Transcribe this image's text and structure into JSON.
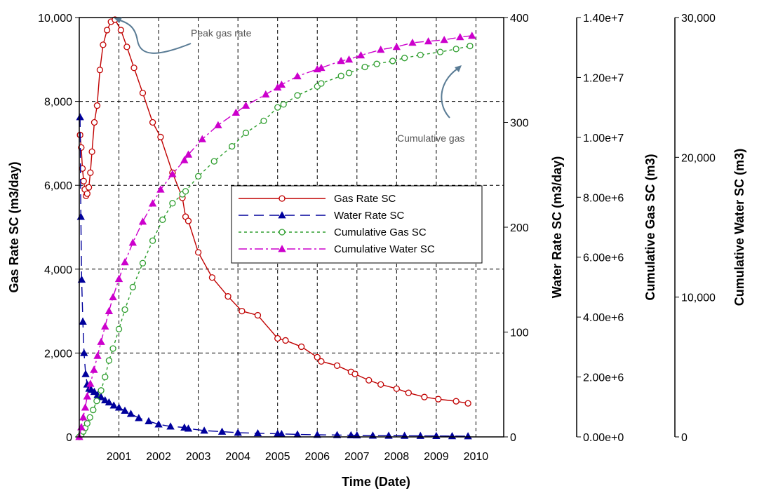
{
  "chart_data": {
    "type": "line",
    "title": "",
    "xlabel": "Time (Date)",
    "x_ticks": [
      "2001",
      "2002",
      "2003",
      "2004",
      "2005",
      "2006",
      "2007",
      "2008",
      "2009",
      "2010"
    ],
    "x_range": [
      2000.0,
      2010.7
    ],
    "axes": [
      {
        "id": "gas_rate",
        "label": "Gas Rate SC (m3/day)",
        "range": [
          0,
          10000
        ],
        "ticks": [
          0,
          2000,
          4000,
          6000,
          8000,
          10000
        ],
        "tick_labels": [
          "0",
          "2,000",
          "4,000",
          "6,000",
          "8,000",
          "10,000"
        ]
      },
      {
        "id": "water_rate",
        "label": "Water Rate SC (m3/day)",
        "range": [
          0,
          400
        ],
        "ticks": [
          0,
          100,
          200,
          300,
          400
        ],
        "tick_labels": [
          "0",
          "100",
          "200",
          "300",
          "400"
        ]
      },
      {
        "id": "cum_gas",
        "label": "Cumulative Gas SC (m3)",
        "range": [
          0,
          14000000
        ],
        "ticks": [
          0,
          2000000,
          4000000,
          6000000,
          8000000,
          10000000,
          12000000,
          14000000
        ],
        "tick_labels": [
          "0.00e+0",
          "2.00e+6",
          "4.00e+6",
          "6.00e+6",
          "8.00e+6",
          "1.00e+7",
          "1.20e+7",
          "1.40e+7"
        ]
      },
      {
        "id": "cum_water",
        "label": "Cumulative Water SC (m3)",
        "range": [
          0,
          30000
        ],
        "ticks": [
          0,
          10000,
          20000,
          30000
        ],
        "tick_labels": [
          "0",
          "10,000",
          "20,000",
          "30,000"
        ]
      }
    ],
    "series": [
      {
        "name": "Gas Rate SC",
        "axis": "gas_rate",
        "color": "#c00000",
        "dash": "",
        "marker": "circle",
        "x": [
          2000.02,
          2000.05,
          2000.08,
          2000.11,
          2000.14,
          2000.17,
          2000.2,
          2000.24,
          2000.28,
          2000.32,
          2000.38,
          2000.45,
          2000.52,
          2000.6,
          2000.7,
          2000.8,
          2000.9,
          2001.05,
          2001.2,
          2001.38,
          2001.6,
          2001.85,
          2002.05,
          2002.35,
          2002.6,
          2002.68,
          2002.75,
          2003.0,
          2003.35,
          2003.75,
          2004.1,
          2004.5,
          2005.0,
          2005.2,
          2005.6,
          2006.0,
          2006.1,
          2006.5,
          2006.85,
          2006.95,
          2007.3,
          2007.6,
          2008.0,
          2008.3,
          2008.7,
          2009.05,
          2009.5,
          2009.8
        ],
        "values": [
          7200,
          6900,
          6400,
          6100,
          5900,
          5750,
          5800,
          5950,
          6300,
          6800,
          7500,
          7900,
          8750,
          9350,
          9700,
          9900,
          9950,
          9700,
          9300,
          8800,
          8200,
          7500,
          7150,
          6300,
          5700,
          5250,
          5150,
          4400,
          3800,
          3350,
          3000,
          2900,
          2350,
          2300,
          2150,
          1900,
          1800,
          1700,
          1550,
          1500,
          1350,
          1250,
          1150,
          1050,
          950,
          900,
          850,
          800
        ]
      },
      {
        "name": "Water Rate SC",
        "axis": "water_rate",
        "color": "#00009c",
        "dash": "14,8",
        "marker": "triangle",
        "x": [
          2000.02,
          2000.04,
          2000.06,
          2000.09,
          2000.12,
          2000.16,
          2000.2,
          2000.25,
          2000.3,
          2000.38,
          2000.46,
          2000.55,
          2000.65,
          2000.75,
          2000.87,
          2001.0,
          2001.15,
          2001.3,
          2001.5,
          2001.75,
          2002.0,
          2002.3,
          2002.65,
          2002.75,
          2003.15,
          2003.6,
          2004.0,
          2004.5,
          2005.0,
          2005.1,
          2005.5,
          2006.0,
          2006.5,
          2006.85,
          2007.0,
          2007.4,
          2007.8,
          2008.2,
          2008.6,
          2009.0,
          2009.4,
          2009.8
        ],
        "values": [
          305,
          210,
          150,
          110,
          80,
          60,
          50,
          46,
          45,
          43,
          40,
          38,
          35,
          33,
          30,
          28,
          25,
          22,
          18,
          15,
          12,
          10,
          9,
          8,
          6,
          5,
          4,
          3.5,
          3,
          2.8,
          2.4,
          2,
          1.8,
          1.6,
          1.5,
          1.3,
          1.2,
          1.1,
          1.0,
          0.9,
          0.8,
          0.7
        ]
      },
      {
        "name": "Cumulative Gas SC",
        "axis": "cum_gas",
        "color": "#2e9e2e",
        "dash": "4,4",
        "marker": "circle",
        "x": [
          2000.0,
          2000.05,
          2000.1,
          2000.15,
          2000.2,
          2000.27,
          2000.35,
          2000.44,
          2000.55,
          2000.65,
          2000.75,
          2000.85,
          2001.0,
          2001.15,
          2001.35,
          2001.6,
          2001.85,
          2002.1,
          2002.35,
          2002.6,
          2002.68,
          2003.0,
          2003.4,
          2003.85,
          2004.2,
          2004.65,
          2005.0,
          2005.15,
          2005.5,
          2006.0,
          2006.1,
          2006.6,
          2006.8,
          2007.2,
          2007.5,
          2007.9,
          2008.2,
          2008.6,
          2009.1,
          2009.5,
          2009.85
        ],
        "values": [
          0,
          80000,
          180000,
          300000,
          450000,
          650000,
          900000,
          1200000,
          1550000,
          2000000,
          2550000,
          2950000,
          3600000,
          4250000,
          5000000,
          5800000,
          6550000,
          7250000,
          7800000,
          8100000,
          8200000,
          8700000,
          9200000,
          9700000,
          10150000,
          10550000,
          11000000,
          11100000,
          11400000,
          11700000,
          11800000,
          12050000,
          12150000,
          12350000,
          12450000,
          12550000,
          12650000,
          12750000,
          12850000,
          12950000,
          13050000
        ]
      },
      {
        "name": "Cumulative Water SC",
        "axis": "cum_water",
        "color": "#cc00cc",
        "dash": "12,4,3,4",
        "marker": "triangle",
        "x": [
          2000.0,
          2000.05,
          2000.1,
          2000.15,
          2000.2,
          2000.28,
          2000.37,
          2000.46,
          2000.55,
          2000.65,
          2000.75,
          2000.85,
          2001.0,
          2001.15,
          2001.35,
          2001.6,
          2001.85,
          2002.05,
          2002.35,
          2002.65,
          2002.75,
          2003.1,
          2003.5,
          2003.95,
          2004.2,
          2004.7,
          2005.0,
          2005.1,
          2005.5,
          2006.0,
          2006.1,
          2006.6,
          2006.8,
          2007.1,
          2007.6,
          2008.0,
          2008.4,
          2008.8,
          2009.2,
          2009.6,
          2009.9
        ],
        "values": [
          0,
          700,
          1400,
          2100,
          2900,
          3800,
          4800,
          5800,
          6800,
          7900,
          9000,
          10000,
          11300,
          12500,
          13900,
          15400,
          16700,
          17700,
          18800,
          19800,
          20200,
          21300,
          22300,
          23200,
          23700,
          24500,
          25000,
          25200,
          25800,
          26300,
          26400,
          26900,
          27000,
          27300,
          27700,
          27900,
          28200,
          28300,
          28400,
          28600,
          28700
        ]
      }
    ],
    "annotations": [
      {
        "text": "Peak gas rate",
        "target_series": "Gas Rate SC"
      },
      {
        "text": "Cumulative gas",
        "target_series": "Cumulative Gas SC"
      }
    ],
    "legend": {
      "placement": "center-right",
      "entries": [
        "Gas Rate SC",
        "Water Rate SC",
        "Cumulative Gas SC",
        "Cumulative Water SC"
      ]
    },
    "grid": true
  }
}
